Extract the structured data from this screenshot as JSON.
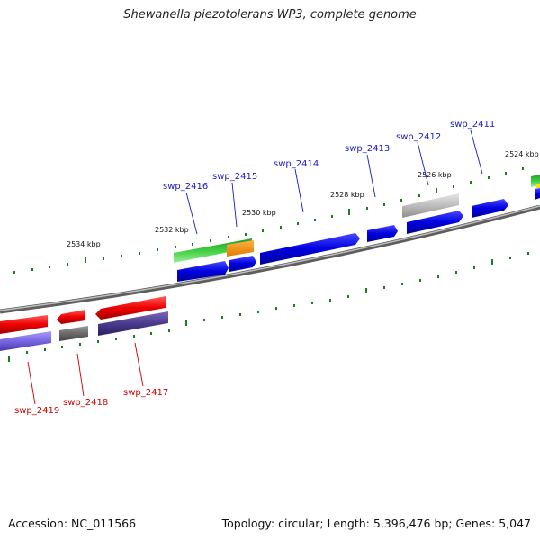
{
  "title": "Shewanella piezotolerans WP3, complete genome",
  "footer": {
    "accession": "Accession: NC_011566",
    "summary": "Topology: circular; Length: 5,396,476 bp; Genes: 5,047"
  },
  "colors": {
    "backbone": "#8a8a8a",
    "tick": "#1f7a1f",
    "label_upper": "#1a1ac8",
    "label_lower": "#d00000"
  },
  "scale_labels": [
    "2534 kbp",
    "2532 kbp",
    "2530 kbp",
    "2528 kbp",
    "2526 kbp",
    "2524 kbp"
  ],
  "gene_labels": [
    "swp_2416",
    "swp_2415",
    "swp_2414",
    "swp_2413",
    "swp_2412",
    "swp_2411",
    "swp_2419",
    "swp_2418",
    "swp_2417"
  ]
}
